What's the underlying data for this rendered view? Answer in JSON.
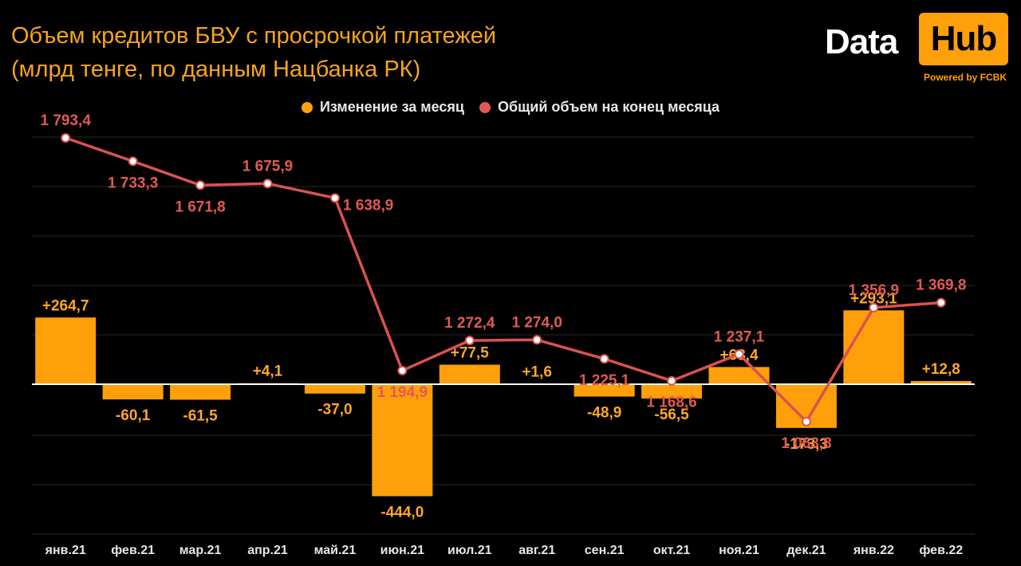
{
  "title": {
    "line1": "Объем кредитов БВУ с просрочкой платежей",
    "line2": "(млрд тенге, по данным Нацбанка РК)"
  },
  "logo": {
    "word1": "Data",
    "word2": "Hub",
    "powered": "Powered by FCBK"
  },
  "colors": {
    "bar": "#ff9f0a",
    "line": "#d9534f",
    "bar_label": "#ffa726",
    "line_label": "#e05a55",
    "grid": "#2a2a2a"
  },
  "legend": {
    "items": [
      {
        "label": "Изменение за месяц",
        "color": "#ff9f0a"
      },
      {
        "label": "Общий объем на конец месяца",
        "color": "#e05a55"
      }
    ]
  },
  "chart_data": {
    "type": "bar",
    "categories": [
      "янв.21",
      "фев.21",
      "мар.21",
      "апр.21",
      "май.21",
      "июн.21",
      "июл.21",
      "авг.21",
      "сен.21",
      "окт.21",
      "ноя.21",
      "дек.21",
      "янв.22",
      "фев.22"
    ],
    "series": [
      {
        "name": "Изменение за месяц",
        "type": "bar",
        "values": [
          264.7,
          -60.1,
          -61.5,
          4.1,
          -37.0,
          -444.0,
          77.5,
          1.6,
          -48.9,
          -56.5,
          68.4,
          -173.3,
          293.1,
          12.8
        ],
        "labels": [
          "+264,7",
          "-60,1",
          "-61,5",
          "+4,1",
          "-37,0",
          "-444,0",
          "+77,5",
          "+1,6",
          "-48,9",
          "-56,5",
          "+68,4",
          "-173,3",
          "+293,1",
          "+12,8"
        ]
      },
      {
        "name": "Общий объем на конец месяца",
        "type": "line",
        "values": [
          1793.4,
          1733.3,
          1671.8,
          1675.9,
          1638.9,
          1194.9,
          1272.4,
          1274.0,
          1225.1,
          1168.6,
          1237.1,
          1063.8,
          1356.9,
          1369.8
        ],
        "labels": [
          "1 793,4",
          "1 733,3",
          "1 671,8",
          "1 675,9",
          "1 638,9",
          "1 194,9",
          "1 272,4",
          "1 274,0",
          "1 225,1",
          "1 168,6",
          "1 237,1",
          "1 063,8",
          "1 356,9",
          "1 369,8"
        ],
        "label_position": [
          "above",
          "below",
          "below",
          "above",
          "right",
          "below",
          "above",
          "above",
          "below",
          "below",
          "above",
          "below",
          "above",
          "above"
        ]
      }
    ],
    "grid": true,
    "legend_position": "top-center"
  }
}
